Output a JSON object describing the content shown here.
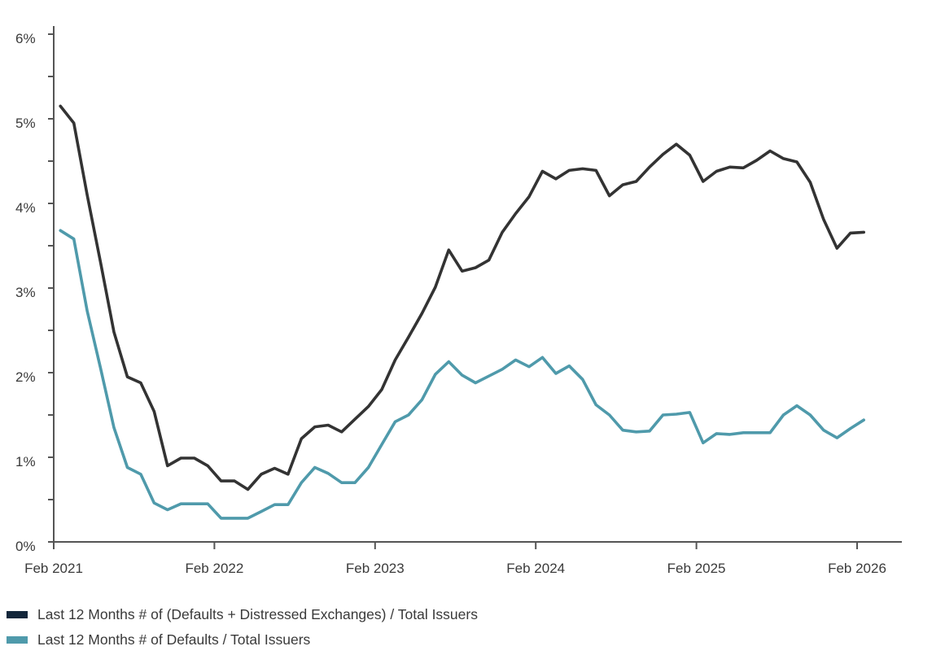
{
  "chart_data": {
    "type": "line",
    "title": "",
    "xlabel": "",
    "ylabel": "",
    "x_start": "2021-02",
    "x_tick_labels": [
      "Feb 2021",
      "Feb 2022",
      "Feb 2023",
      "Feb 2024",
      "Feb 2025",
      "Feb 2026"
    ],
    "x_tick_month_index": [
      0,
      12,
      24,
      36,
      48,
      60
    ],
    "y_tick_labels": [
      "0%",
      "1%",
      "2%",
      "3%",
      "4%",
      "5%",
      "6%"
    ],
    "y_tick_values": [
      0,
      1,
      2,
      3,
      4,
      5,
      6
    ],
    "ylim": [
      0,
      6
    ],
    "grid": false,
    "legend_position": "bottom-left",
    "series": [
      {
        "name": "Last 12 Months # of (Defaults + Distressed Exchanges) / Total Issuers",
        "color": "#333333",
        "swatch_color": "#13273b",
        "start_month_index": 0.5,
        "values": [
          5.15,
          4.95,
          4.1,
          3.3,
          2.48,
          1.95,
          1.88,
          1.54,
          0.9,
          0.99,
          0.99,
          0.9,
          0.72,
          0.72,
          0.62,
          0.8,
          0.87,
          0.8,
          1.22,
          1.36,
          1.38,
          1.3,
          1.45,
          1.6,
          1.8,
          2.15,
          2.42,
          2.7,
          3.01,
          3.45,
          3.2,
          3.24,
          3.33,
          3.66,
          3.88,
          4.08,
          4.38,
          4.29,
          4.39,
          4.41,
          4.39,
          4.09,
          4.22,
          4.26,
          4.43,
          4.58,
          4.7,
          4.57,
          4.26,
          4.38,
          4.43,
          4.42,
          4.51,
          4.62,
          4.53,
          4.49,
          4.25,
          3.81,
          3.47,
          3.65,
          3.66
        ]
      },
      {
        "name": "Last 12 Months # of Defaults / Total Issuers",
        "color": "#4f9aab",
        "swatch_color": "#4f9aab",
        "start_month_index": 0.5,
        "values": [
          3.68,
          3.58,
          2.73,
          2.05,
          1.35,
          0.88,
          0.8,
          0.46,
          0.38,
          0.45,
          0.45,
          0.45,
          0.28,
          0.28,
          0.28,
          0.36,
          0.44,
          0.44,
          0.7,
          0.88,
          0.81,
          0.7,
          0.7,
          0.88,
          1.15,
          1.42,
          1.5,
          1.68,
          1.98,
          2.13,
          1.97,
          1.88,
          1.96,
          2.04,
          2.15,
          2.07,
          2.18,
          1.99,
          2.08,
          1.92,
          1.62,
          1.5,
          1.32,
          1.3,
          1.31,
          1.5,
          1.51,
          1.53,
          1.17,
          1.28,
          1.27,
          1.29,
          1.29,
          1.29,
          1.5,
          1.61,
          1.5,
          1.32,
          1.23,
          1.34,
          1.44
        ]
      }
    ]
  }
}
